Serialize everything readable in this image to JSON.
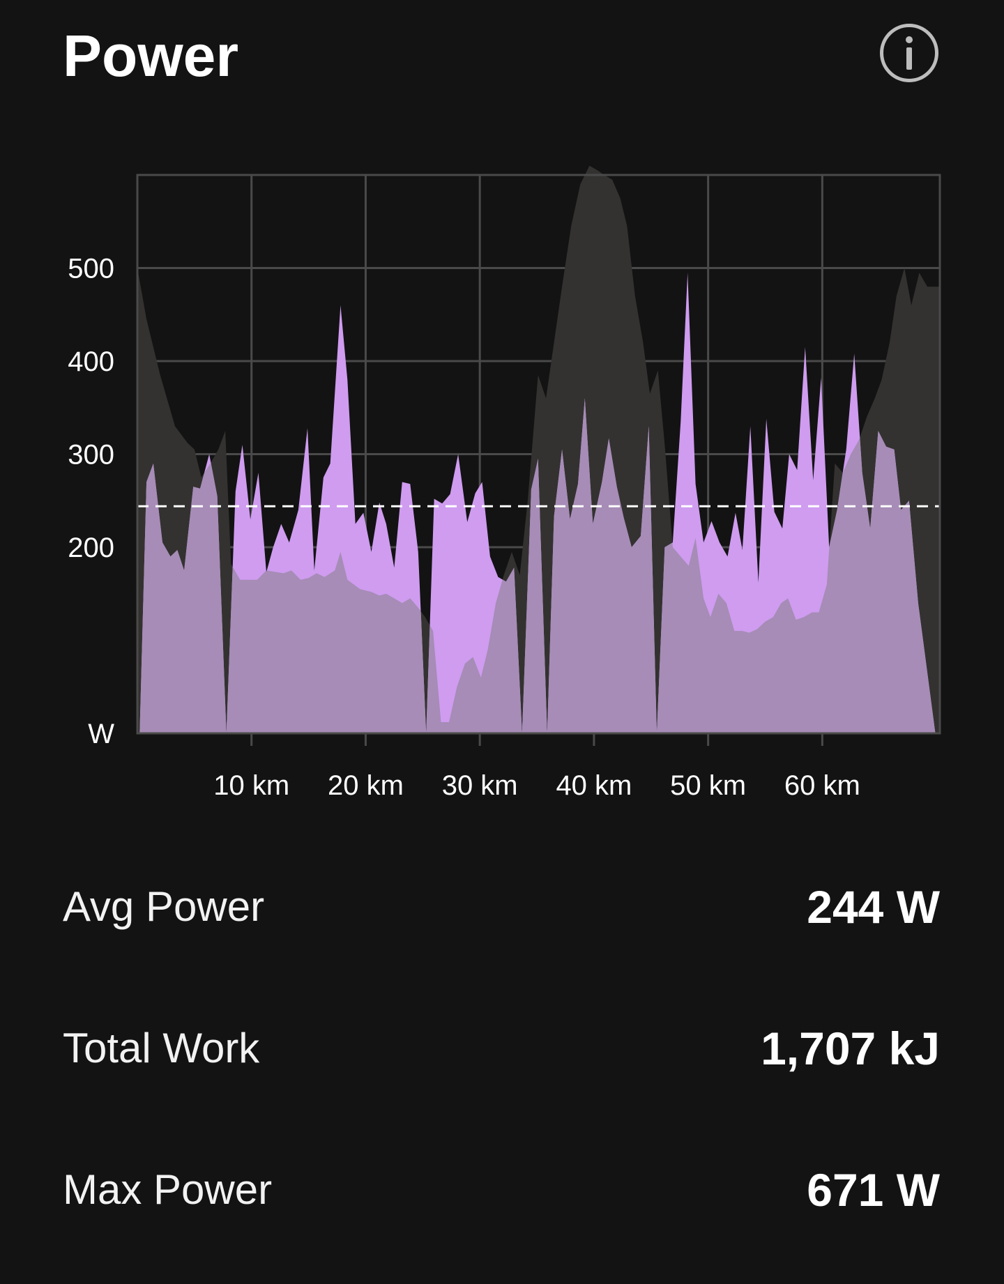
{
  "header": {
    "title": "Power",
    "info_icon": "info-icon"
  },
  "colors": {
    "background": "#131313",
    "power_fill": "#cf9cf0",
    "elevation_fill": "#333230",
    "grid": "#4a4a4a",
    "average_line": "#ffffff"
  },
  "chart_data": {
    "type": "area",
    "title": "",
    "xlabel": "",
    "ylabel": "W",
    "x_unit": "km",
    "xlim": [
      0,
      70.3
    ],
    "ylim": [
      0,
      600
    ],
    "y_ticks": [
      {
        "value": 0,
        "label": "W"
      },
      {
        "value": 200,
        "label": "200"
      },
      {
        "value": 300,
        "label": "300"
      },
      {
        "value": 400,
        "label": "400"
      },
      {
        "value": 500,
        "label": "500"
      }
    ],
    "x_ticks": [
      {
        "value": 10,
        "label": "10 km"
      },
      {
        "value": 20,
        "label": "20 km"
      },
      {
        "value": 30,
        "label": "30 km"
      },
      {
        "value": 40,
        "label": "40 km"
      },
      {
        "value": 50,
        "label": "50 km"
      },
      {
        "value": 60,
        "label": "60 km"
      }
    ],
    "grid": true,
    "average_line": 244,
    "series": [
      {
        "role": "power",
        "points": [
          [
            0.2,
            0
          ],
          [
            0.8,
            270
          ],
          [
            1.4,
            290
          ],
          [
            2.2,
            205
          ],
          [
            2.9,
            190
          ],
          [
            3.5,
            197
          ],
          [
            4.1,
            175
          ],
          [
            4.9,
            265
          ],
          [
            5.5,
            263
          ],
          [
            6.3,
            300
          ],
          [
            7.0,
            255
          ],
          [
            7.8,
            0
          ],
          [
            8.6,
            260
          ],
          [
            9.2,
            310
          ],
          [
            9.9,
            230
          ],
          [
            10.6,
            280
          ],
          [
            11.3,
            173
          ],
          [
            11.9,
            200
          ],
          [
            12.6,
            225
          ],
          [
            13.3,
            205
          ],
          [
            14.1,
            240
          ],
          [
            14.9,
            328
          ],
          [
            15.5,
            175
          ],
          [
            16.3,
            275
          ],
          [
            16.9,
            290
          ],
          [
            17.8,
            460
          ],
          [
            18.4,
            380
          ],
          [
            19.1,
            225
          ],
          [
            19.8,
            237
          ],
          [
            20.5,
            195
          ],
          [
            21.2,
            248
          ],
          [
            21.8,
            225
          ],
          [
            22.5,
            178
          ],
          [
            23.2,
            270
          ],
          [
            23.9,
            268
          ],
          [
            24.6,
            195
          ],
          [
            25.3,
            0
          ],
          [
            26.0,
            252
          ],
          [
            26.7,
            247
          ],
          [
            27.4,
            257
          ],
          [
            28.1,
            300
          ],
          [
            28.9,
            227
          ],
          [
            29.6,
            258
          ],
          [
            30.2,
            270
          ],
          [
            30.9,
            190
          ],
          [
            31.6,
            168
          ],
          [
            32.3,
            163
          ],
          [
            33.0,
            178
          ],
          [
            33.7,
            0
          ],
          [
            34.5,
            262
          ],
          [
            35.1,
            295
          ],
          [
            35.9,
            0
          ],
          [
            36.5,
            233
          ],
          [
            37.2,
            305
          ],
          [
            37.9,
            230
          ],
          [
            38.6,
            268
          ],
          [
            39.2,
            360
          ],
          [
            39.9,
            225
          ],
          [
            40.7,
            270
          ],
          [
            41.3,
            317
          ],
          [
            42.0,
            265
          ],
          [
            42.6,
            232
          ],
          [
            43.3,
            200
          ],
          [
            44.1,
            212
          ],
          [
            44.8,
            330
          ],
          [
            45.5,
            0
          ],
          [
            46.2,
            200
          ],
          [
            46.9,
            205
          ],
          [
            47.6,
            335
          ],
          [
            48.2,
            495
          ],
          [
            48.9,
            268
          ],
          [
            49.6,
            205
          ],
          [
            50.3,
            228
          ],
          [
            51.0,
            205
          ],
          [
            51.7,
            190
          ],
          [
            52.4,
            237
          ],
          [
            53.0,
            197
          ],
          [
            53.7,
            330
          ],
          [
            54.4,
            162
          ],
          [
            55.1,
            338
          ],
          [
            55.8,
            238
          ],
          [
            56.5,
            220
          ],
          [
            57.1,
            300
          ],
          [
            57.8,
            283
          ],
          [
            58.5,
            415
          ],
          [
            59.2,
            272
          ],
          [
            59.9,
            382
          ],
          [
            60.6,
            200
          ],
          [
            61.3,
            240
          ],
          [
            62.1,
            305
          ],
          [
            62.8,
            408
          ],
          [
            63.5,
            280
          ],
          [
            64.2,
            220
          ],
          [
            64.9,
            325
          ],
          [
            65.6,
            308
          ],
          [
            66.3,
            305
          ],
          [
            66.9,
            240
          ],
          [
            67.6,
            250
          ],
          [
            68.4,
            140
          ],
          [
            69.9,
            0
          ]
        ]
      },
      {
        "role": "elevation",
        "points": [
          [
            0,
            0
          ],
          [
            0,
            500
          ],
          [
            0.8,
            445
          ],
          [
            2.0,
            385
          ],
          [
            3.3,
            330
          ],
          [
            4.4,
            312
          ],
          [
            5.0,
            305
          ],
          [
            5.6,
            275
          ],
          [
            6.4,
            290
          ],
          [
            7.1,
            305
          ],
          [
            7.7,
            325
          ],
          [
            8.2,
            182
          ],
          [
            9.0,
            165
          ],
          [
            10.5,
            165
          ],
          [
            11.3,
            175
          ],
          [
            12.8,
            172
          ],
          [
            13.5,
            175
          ],
          [
            14.3,
            165
          ],
          [
            15.0,
            167
          ],
          [
            15.7,
            172
          ],
          [
            16.4,
            168
          ],
          [
            17.3,
            175
          ],
          [
            17.8,
            195
          ],
          [
            18.4,
            165
          ],
          [
            19.5,
            155
          ],
          [
            20.5,
            152
          ],
          [
            21.2,
            148
          ],
          [
            21.8,
            150
          ],
          [
            22.5,
            145
          ],
          [
            23.2,
            140
          ],
          [
            23.9,
            145
          ],
          [
            24.6,
            135
          ],
          [
            25.2,
            125
          ],
          [
            25.9,
            110
          ],
          [
            26.6,
            12
          ],
          [
            27.3,
            12
          ],
          [
            28.0,
            50
          ],
          [
            28.7,
            75
          ],
          [
            29.4,
            82
          ],
          [
            30.1,
            60
          ],
          [
            30.7,
            90
          ],
          [
            31.4,
            140
          ],
          [
            32.1,
            170
          ],
          [
            32.8,
            195
          ],
          [
            33.5,
            170
          ],
          [
            34.2,
            250
          ],
          [
            35.1,
            385
          ],
          [
            35.8,
            360
          ],
          [
            36.5,
            420
          ],
          [
            37.2,
            480
          ],
          [
            38.0,
            545
          ],
          [
            38.8,
            590
          ],
          [
            39.6,
            610
          ],
          [
            40.3,
            605
          ],
          [
            40.9,
            600
          ],
          [
            41.6,
            595
          ],
          [
            42.3,
            575
          ],
          [
            42.9,
            545
          ],
          [
            43.6,
            470
          ],
          [
            44.3,
            420
          ],
          [
            44.9,
            365
          ],
          [
            45.6,
            390
          ],
          [
            46.2,
            310
          ],
          [
            46.9,
            200
          ],
          [
            47.6,
            190
          ],
          [
            48.3,
            180
          ],
          [
            48.9,
            210
          ],
          [
            49.6,
            145
          ],
          [
            50.2,
            125
          ],
          [
            50.9,
            150
          ],
          [
            51.6,
            140
          ],
          [
            52.3,
            110
          ],
          [
            53.0,
            110
          ],
          [
            53.6,
            108
          ],
          [
            54.3,
            112
          ],
          [
            55.0,
            120
          ],
          [
            55.7,
            125
          ],
          [
            56.4,
            140
          ],
          [
            57.0,
            145
          ],
          [
            57.7,
            122
          ],
          [
            58.4,
            125
          ],
          [
            59.1,
            130
          ],
          [
            59.7,
            130
          ],
          [
            60.4,
            160
          ],
          [
            61.1,
            290
          ],
          [
            61.8,
            280
          ],
          [
            62.5,
            300
          ],
          [
            63.2,
            315
          ],
          [
            63.9,
            340
          ],
          [
            64.6,
            360
          ],
          [
            65.2,
            380
          ],
          [
            65.9,
            420
          ],
          [
            66.5,
            470
          ],
          [
            67.2,
            500
          ],
          [
            67.8,
            460
          ],
          [
            68.5,
            495
          ],
          [
            69.2,
            480
          ],
          [
            70.3,
            480
          ],
          [
            70.3,
            0
          ]
        ]
      }
    ]
  },
  "stats": [
    {
      "label": "Avg Power",
      "value": "244 W"
    },
    {
      "label": "Total Work",
      "value": "1,707 kJ"
    },
    {
      "label": "Max Power",
      "value": "671 W"
    }
  ]
}
